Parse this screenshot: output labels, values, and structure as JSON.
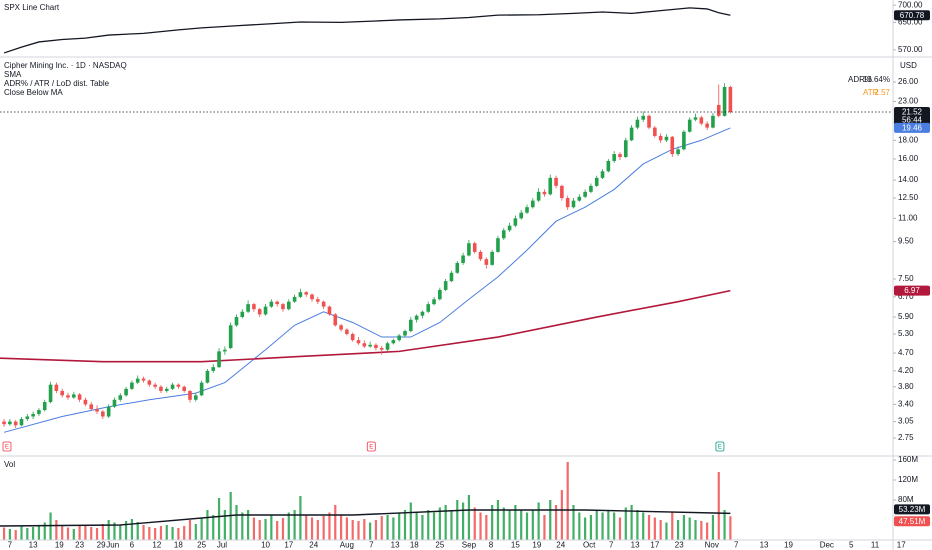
{
  "chart_data": [
    {
      "type": "line",
      "title": "SPX Line Chart",
      "color": "#131722",
      "x": [
        0,
        3,
        6,
        10,
        14,
        18,
        24,
        30,
        34,
        40,
        46,
        51,
        58,
        64,
        68,
        75,
        80,
        85,
        92,
        98,
        103,
        108,
        113,
        118,
        121,
        123,
        125
      ],
      "values": [
        561,
        578,
        593,
        600,
        604,
        613,
        618,
        628,
        634,
        640,
        646,
        651,
        650,
        654,
        657,
        660,
        664,
        671,
        672,
        676,
        680,
        676,
        684,
        692,
        689,
        678,
        670.78
      ],
      "ylim": [
        555,
        715
      ],
      "yticks": [
        {
          "value": 700,
          "label": "700.00"
        },
        {
          "value": 650,
          "label": "650.00"
        },
        {
          "value": 570,
          "label": "570.00"
        }
      ]
    },
    {
      "type": "candlestick",
      "title": "Cipher Mining Inc. · 1D · NASDAQ",
      "legend": [
        "SMA",
        "ADR% / ATR / LoD dist. Table",
        "Close Below MA"
      ],
      "currency": "USD",
      "countdown": "56:44",
      "log_scale": true,
      "grid": false,
      "up_color": "#22a04b",
      "down_color": "#f0504f",
      "xlim": [
        -0.7,
        159.7
      ],
      "xticks": [
        {
          "value": 1,
          "label": "7"
        },
        {
          "value": 5,
          "label": "13"
        },
        {
          "value": 9.5,
          "label": "19"
        },
        {
          "value": 13,
          "label": "23"
        },
        {
          "value": 16.7,
          "label": "29"
        },
        {
          "value": 18.7,
          "label": "Jun"
        },
        {
          "value": 22,
          "label": "6"
        },
        {
          "value": 26.3,
          "label": "12"
        },
        {
          "value": 30,
          "label": "18"
        },
        {
          "value": 34,
          "label": "25"
        },
        {
          "value": 37.5,
          "label": "Jul"
        },
        {
          "value": 45,
          "label": "10"
        },
        {
          "value": 49,
          "label": "17"
        },
        {
          "value": 53.3,
          "label": "24"
        },
        {
          "value": 59,
          "label": "Aug"
        },
        {
          "value": 63.2,
          "label": "7"
        },
        {
          "value": 67.3,
          "label": "13"
        },
        {
          "value": 70.6,
          "label": "18"
        },
        {
          "value": 75,
          "label": "25"
        },
        {
          "value": 80,
          "label": "Sep"
        },
        {
          "value": 83.8,
          "label": "8"
        },
        {
          "value": 88,
          "label": "15"
        },
        {
          "value": 91.7,
          "label": "19"
        },
        {
          "value": 95.8,
          "label": "24"
        },
        {
          "value": 100.7,
          "label": "Oct"
        },
        {
          "value": 104.5,
          "label": "7"
        },
        {
          "value": 108.6,
          "label": "13"
        },
        {
          "value": 112,
          "label": "17"
        },
        {
          "value": 116.2,
          "label": "23"
        },
        {
          "value": 121.8,
          "label": "Nov"
        },
        {
          "value": 126,
          "label": "7"
        },
        {
          "value": 130.8,
          "label": "13"
        },
        {
          "value": 135,
          "label": "19"
        },
        {
          "value": 141.6,
          "label": "Dec"
        },
        {
          "value": 145.8,
          "label": "5"
        },
        {
          "value": 149.9,
          "label": "11"
        },
        {
          "value": 154.4,
          "label": "17"
        }
      ],
      "ylim": [
        2.47,
        29.5
      ],
      "yticks": [
        {
          "value": 26,
          "label": "26.00"
        },
        {
          "value": 23,
          "label": "23.00"
        },
        {
          "value": 18,
          "label": "18.00"
        },
        {
          "value": 16,
          "label": "16.00"
        },
        {
          "value": 14,
          "label": "14.00"
        },
        {
          "value": 12.5,
          "label": "12.50"
        },
        {
          "value": 11,
          "label": "11.00"
        },
        {
          "value": 9.5,
          "label": "9.50"
        },
        {
          "value": 7.5,
          "label": "7.50"
        },
        {
          "value": 6.7,
          "label": "6.70"
        },
        {
          "value": 5.9,
          "label": "5.90"
        },
        {
          "value": 5.3,
          "label": "5.30"
        },
        {
          "value": 4.7,
          "label": "4.70"
        },
        {
          "value": 4.2,
          "label": "4.20"
        },
        {
          "value": 3.8,
          "label": "3.80"
        },
        {
          "value": 3.4,
          "label": "3.40"
        },
        {
          "value": 3.05,
          "label": "3.05"
        },
        {
          "value": 2.75,
          "label": "2.75"
        }
      ],
      "candles": [
        [
          3.05,
          3.1,
          2.95,
          3.0
        ],
        [
          3.0,
          3.1,
          2.97,
          3.05
        ],
        [
          3.05,
          3.08,
          2.93,
          2.98
        ],
        [
          2.98,
          3.14,
          2.96,
          3.1
        ],
        [
          3.1,
          3.2,
          3.06,
          3.15
        ],
        [
          3.15,
          3.25,
          3.1,
          3.2
        ],
        [
          3.2,
          3.32,
          3.16,
          3.28
        ],
        [
          3.28,
          3.5,
          3.25,
          3.45
        ],
        [
          3.45,
          3.92,
          3.42,
          3.85
        ],
        [
          3.85,
          3.9,
          3.65,
          3.7
        ],
        [
          3.7,
          3.75,
          3.55,
          3.6
        ],
        [
          3.6,
          3.66,
          3.5,
          3.55
        ],
        [
          3.55,
          3.68,
          3.52,
          3.62
        ],
        [
          3.62,
          3.65,
          3.45,
          3.5
        ],
        [
          3.5,
          3.55,
          3.36,
          3.4
        ],
        [
          3.4,
          3.45,
          3.27,
          3.3
        ],
        [
          3.3,
          3.38,
          3.2,
          3.25
        ],
        [
          3.25,
          3.28,
          3.1,
          3.15
        ],
        [
          3.15,
          3.4,
          3.12,
          3.35
        ],
        [
          3.35,
          3.55,
          3.32,
          3.5
        ],
        [
          3.5,
          3.65,
          3.46,
          3.6
        ],
        [
          3.6,
          3.8,
          3.57,
          3.75
        ],
        [
          3.75,
          3.95,
          3.72,
          3.9
        ],
        [
          3.9,
          4.08,
          3.86,
          4.0
        ],
        [
          4.0,
          4.05,
          3.9,
          3.95
        ],
        [
          3.95,
          3.98,
          3.8,
          3.85
        ],
        [
          3.85,
          3.9,
          3.75,
          3.8
        ],
        [
          3.8,
          3.84,
          3.65,
          3.7
        ],
        [
          3.7,
          3.8,
          3.66,
          3.75
        ],
        [
          3.75,
          3.9,
          3.72,
          3.85
        ],
        [
          3.85,
          3.88,
          3.75,
          3.8
        ],
        [
          3.8,
          3.83,
          3.66,
          3.7
        ],
        [
          3.7,
          3.72,
          3.44,
          3.5
        ],
        [
          3.5,
          3.65,
          3.46,
          3.6
        ],
        [
          3.6,
          3.95,
          3.58,
          3.9
        ],
        [
          3.9,
          4.25,
          3.88,
          4.2
        ],
        [
          4.2,
          4.38,
          4.15,
          4.3
        ],
        [
          4.3,
          4.85,
          4.28,
          4.75
        ],
        [
          4.75,
          4.9,
          4.65,
          4.8
        ],
        [
          4.85,
          5.7,
          4.82,
          5.6
        ],
        [
          5.6,
          6.0,
          5.55,
          5.9
        ],
        [
          5.9,
          6.2,
          5.85,
          6.1
        ],
        [
          6.1,
          6.55,
          6.05,
          6.4
        ],
        [
          6.4,
          6.45,
          6.1,
          6.2
        ],
        [
          6.2,
          6.25,
          5.9,
          6.0
        ],
        [
          6.0,
          6.4,
          5.95,
          6.3
        ],
        [
          6.3,
          6.6,
          6.25,
          6.5
        ],
        [
          6.5,
          6.55,
          6.3,
          6.4
        ],
        [
          6.4,
          6.45,
          6.1,
          6.2
        ],
        [
          6.2,
          6.6,
          6.15,
          6.5
        ],
        [
          6.5,
          6.8,
          6.45,
          6.7
        ],
        [
          6.7,
          7.05,
          6.65,
          6.9
        ],
        [
          6.9,
          6.95,
          6.7,
          6.8
        ],
        [
          6.8,
          6.85,
          6.5,
          6.6
        ],
        [
          6.6,
          6.7,
          6.4,
          6.5
        ],
        [
          6.5,
          6.55,
          6.2,
          6.3
        ],
        [
          6.3,
          6.35,
          5.95,
          6.0
        ],
        [
          6.0,
          6.05,
          5.55,
          5.6
        ],
        [
          5.6,
          5.65,
          5.38,
          5.45
        ],
        [
          5.45,
          5.5,
          5.25,
          5.3
        ],
        [
          5.3,
          5.35,
          5.05,
          5.1
        ],
        [
          5.1,
          5.2,
          4.95,
          5.0
        ],
        [
          5.0,
          5.1,
          4.85,
          4.9
        ],
        [
          4.9,
          5.05,
          4.86,
          4.95
        ],
        [
          4.95,
          5.0,
          4.78,
          4.85
        ],
        [
          4.85,
          4.92,
          4.65,
          4.8
        ],
        [
          4.8,
          5.05,
          4.76,
          5.0
        ],
        [
          5.0,
          5.15,
          4.96,
          5.1
        ],
        [
          5.1,
          5.3,
          5.05,
          5.25
        ],
        [
          5.25,
          5.45,
          5.2,
          5.4
        ],
        [
          5.4,
          5.9,
          5.36,
          5.8
        ],
        [
          5.8,
          6.0,
          5.7,
          5.95
        ],
        [
          5.95,
          6.15,
          5.85,
          6.1
        ],
        [
          6.1,
          6.5,
          6.05,
          6.4
        ],
        [
          6.4,
          6.7,
          6.35,
          6.6
        ],
        [
          6.6,
          7.1,
          6.55,
          7.0
        ],
        [
          7.0,
          7.5,
          6.95,
          7.4
        ],
        [
          7.4,
          7.9,
          7.35,
          7.8
        ],
        [
          7.8,
          8.4,
          7.75,
          8.3
        ],
        [
          8.3,
          8.85,
          8.2,
          8.7
        ],
        [
          8.7,
          9.6,
          8.65,
          9.4
        ],
        [
          9.4,
          9.5,
          8.8,
          8.9
        ],
        [
          8.9,
          9.0,
          8.4,
          8.5
        ],
        [
          8.5,
          8.6,
          8.0,
          8.2
        ],
        [
          8.2,
          9.0,
          8.15,
          8.9
        ],
        [
          8.9,
          9.85,
          8.85,
          9.7
        ],
        [
          9.7,
          10.35,
          9.6,
          10.2
        ],
        [
          10.2,
          10.7,
          10.1,
          10.5
        ],
        [
          10.5,
          11.2,
          10.4,
          11.0
        ],
        [
          11.0,
          11.6,
          10.9,
          11.4
        ],
        [
          11.4,
          12.0,
          11.3,
          11.8
        ],
        [
          11.8,
          12.5,
          11.7,
          12.3
        ],
        [
          12.3,
          13.3,
          12.2,
          13.0
        ],
        [
          13.0,
          13.2,
          12.6,
          12.8
        ],
        [
          12.8,
          14.5,
          12.7,
          14.2
        ],
        [
          14.2,
          14.4,
          13.3,
          13.5
        ],
        [
          13.5,
          13.6,
          12.3,
          12.5
        ],
        [
          12.5,
          12.7,
          11.6,
          11.8
        ],
        [
          11.8,
          12.5,
          11.7,
          12.3
        ],
        [
          12.3,
          12.8,
          12.2,
          12.6
        ],
        [
          12.6,
          13.2,
          12.5,
          13.0
        ],
        [
          13.0,
          13.7,
          12.9,
          13.5
        ],
        [
          13.5,
          14.4,
          13.4,
          14.2
        ],
        [
          14.2,
          15.0,
          14.1,
          14.8
        ],
        [
          14.8,
          16.0,
          14.7,
          15.8
        ],
        [
          15.8,
          16.8,
          15.6,
          16.5
        ],
        [
          16.5,
          16.7,
          15.9,
          16.2
        ],
        [
          16.2,
          18.3,
          16.1,
          18.0
        ],
        [
          18.0,
          19.8,
          17.9,
          19.5
        ],
        [
          19.5,
          20.9,
          19.3,
          20.5
        ],
        [
          20.5,
          21.6,
          20.2,
          21.0
        ],
        [
          21.0,
          21.2,
          19.3,
          19.5
        ],
        [
          19.5,
          19.7,
          18.3,
          18.5
        ],
        [
          18.5,
          18.8,
          17.7,
          18.0
        ],
        [
          18.0,
          18.7,
          17.8,
          18.4
        ],
        [
          18.4,
          18.5,
          16.2,
          16.5
        ],
        [
          16.5,
          17.3,
          16.3,
          17.0
        ],
        [
          17.0,
          19.2,
          16.9,
          19.0
        ],
        [
          19.0,
          20.8,
          18.9,
          20.5
        ],
        [
          20.5,
          21.3,
          20.3,
          20.8
        ],
        [
          20.8,
          21.0,
          19.8,
          20.0
        ],
        [
          20.0,
          20.3,
          19.2,
          19.5
        ],
        [
          19.5,
          21.4,
          19.4,
          21.0
        ],
        [
          22.5,
          25.6,
          20.8,
          21.0
        ],
        [
          21.0,
          25.8,
          20.9,
          25.2
        ],
        [
          25.2,
          25.4,
          21.3,
          21.52
        ]
      ],
      "overlays": [
        {
          "color": "#4a7ee0",
          "x": [
            0,
            10,
            18,
            25,
            33,
            38,
            45,
            50,
            55,
            60,
            65,
            70,
            75,
            80,
            85,
            90,
            95,
            100,
            105,
            110,
            115,
            120,
            125
          ],
          "values": [
            2.85,
            3.15,
            3.35,
            3.5,
            3.65,
            3.9,
            4.8,
            5.6,
            6.1,
            5.7,
            5.2,
            5.2,
            5.7,
            6.6,
            7.6,
            9.0,
            10.8,
            11.8,
            13.2,
            15.5,
            17.0,
            18.0,
            19.46
          ]
        },
        {
          "color": "#b2183c",
          "x": [
            -0.7,
            17,
            34,
            51,
            68,
            85,
            102,
            116,
            125
          ],
          "values": [
            4.55,
            4.45,
            4.45,
            4.6,
            4.75,
            5.2,
            5.9,
            6.5,
            6.97
          ]
        }
      ],
      "events": [
        {
          "x": 0.5,
          "label": "E",
          "color": "#f23645"
        },
        {
          "x": 63.2,
          "label": "E",
          "color": "#f23645"
        },
        {
          "x": 123.2,
          "label": "E",
          "color": "#089981"
        }
      ],
      "table": [
        [
          "ADR%",
          "13.64%"
        ],
        [
          "ATR",
          "2.57"
        ]
      ]
    },
    {
      "type": "bar",
      "title": "Vol",
      "ylim": [
        0,
        168
      ],
      "yticks": [
        {
          "value": 160,
          "label": "160M"
        },
        {
          "value": 120,
          "label": "120M"
        },
        {
          "value": 80,
          "label": "80M"
        }
      ],
      "values": [
        25,
        22,
        20,
        28,
        24,
        26,
        30,
        35,
        55,
        40,
        30,
        25,
        22,
        28,
        30,
        26,
        24,
        32,
        40,
        35,
        30,
        38,
        42,
        36,
        30,
        26,
        24,
        28,
        30,
        26,
        24,
        28,
        40,
        32,
        45,
        60,
        50,
        84,
        60,
        96,
        70,
        55,
        60,
        45,
        40,
        42,
        50,
        38,
        44,
        55,
        60,
        88,
        50,
        45,
        40,
        48,
        55,
        70,
        50,
        45,
        40,
        38,
        42,
        35,
        40,
        48,
        50,
        45,
        55,
        60,
        75,
        55,
        50,
        60,
        55,
        65,
        70,
        60,
        80,
        75,
        90,
        65,
        55,
        50,
        70,
        80,
        65,
        60,
        70,
        60,
        55,
        60,
        75,
        50,
        80,
        70,
        100,
        156,
        70,
        55,
        45,
        50,
        60,
        55,
        60,
        55,
        45,
        65,
        70,
        60,
        55,
        50,
        45,
        40,
        35,
        55,
        40,
        50,
        45,
        40,
        38,
        35,
        50,
        136,
        60,
        47.51
      ],
      "last_value_label": "47.51M",
      "ma": {
        "color": "#131722",
        "x": [
          -0.7,
          20,
          40,
          60,
          80,
          100,
          125
        ],
        "values": [
          28,
          30,
          50,
          50,
          60,
          60,
          53.23
        ],
        "last_label": "53.23M"
      }
    }
  ]
}
